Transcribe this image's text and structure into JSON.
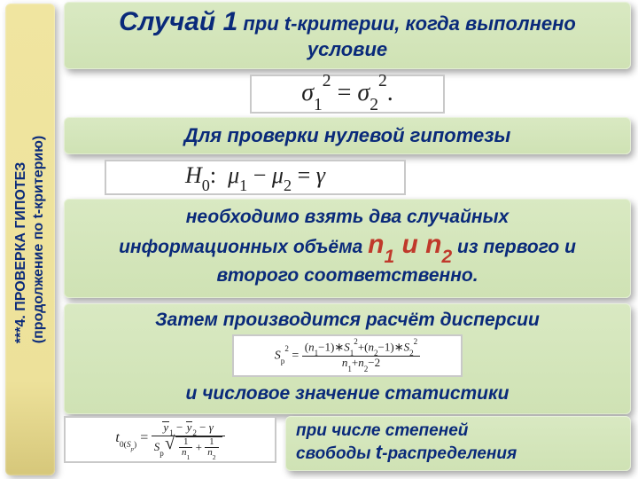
{
  "colors": {
    "panel_bg_top": "#d9e9c2",
    "panel_bg_bottom": "#cfe2b4",
    "panel_text": "#0a2a7a",
    "sidebar_bg_top": "#f0e5a0",
    "sidebar_bg_bottom": "#d6c77a",
    "accent_red": "#c0392b",
    "formula_border": "#c9c9c9",
    "page_bg": "#ffffff"
  },
  "sidebar": {
    "line1": "***4. ПРОВЕРКА ГИПОТЕЗ",
    "line2": "(продолжение  по t-критерию)"
  },
  "panel1": {
    "case": "Случай 1",
    "rest": " при t-критерии, когда выполнено условие"
  },
  "formula1": "σ₁² = σ₂².",
  "panel2": "Для проверки нулевой гипотезы",
  "formula2_prefix": "H₀:",
  "formula2_body": "μ₁ − μ₂ = γ",
  "panel3": {
    "line1": "необходимо взять два случайных",
    "pre": "информационных объёма ",
    "n1": "n",
    "sub1": "1",
    "conj": " и ",
    "n2": "n",
    "sub2": "2",
    "post": " из первого и второго соответственно."
  },
  "panel4": {
    "line1": "Затем производится расчёт дисперсии",
    "line2": "и числовое значение статистики"
  },
  "formula3": {
    "lhs_symbol": "S",
    "lhs_sub": "p",
    "lhs_sup": "2",
    "num": "(n₁−1)∗S₁² + (n₂−1)∗S₂²",
    "den": "n₁ + n₂ − 2"
  },
  "formula4": {
    "lhs": "t",
    "lhs_sub": "0(Sₚ)",
    "num_y1": "y",
    "num_sub1": "1",
    "num_y2": "y",
    "num_sub2": "2",
    "num_tail": " − γ",
    "den_sp": "Sₚ",
    "rad_a": "1",
    "rad_b": "n₁",
    "rad_c": "1",
    "rad_d": "n₂"
  },
  "panel5": {
    "line1_pre": "при числе степеней",
    "line2_pre": "свободы ",
    "t": "t",
    "line2_post": "-распределения"
  }
}
